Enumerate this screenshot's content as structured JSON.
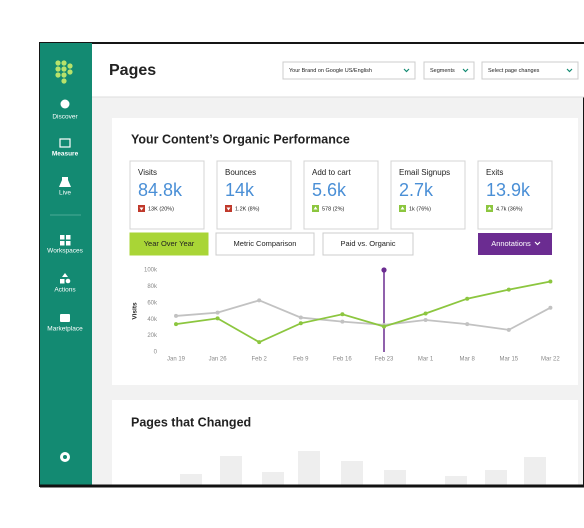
{
  "sidebar": {
    "nav": [
      "Discover",
      "Measure",
      "Live",
      "Workspaces",
      "Actions",
      "Marketplace"
    ]
  },
  "header": {
    "title": "Pages",
    "filters": [
      "Your Brand on Google US/English",
      "Segments",
      "Select page changes"
    ]
  },
  "panel": {
    "title": "Your Content’s Organic Performance",
    "metrics": [
      {
        "label": "Visits",
        "value": "84.8k",
        "change": "13K (20%)",
        "trend": "down"
      },
      {
        "label": "Bounces",
        "value": "14k",
        "change": "1.2K (8%)",
        "trend": "down"
      },
      {
        "label": "Add to cart",
        "value": "5.6k",
        "change": "578 (2%)",
        "trend": "up"
      },
      {
        "label": "Email Signups",
        "value": "2.7k",
        "change": "1k (76%)",
        "trend": "up"
      },
      {
        "label": "Exits",
        "value": "13.9k",
        "change": "4.7k (36%)",
        "trend": "up"
      }
    ],
    "tabs": [
      "Year Over Year",
      "Metric Comparison",
      "Paid vs. Organic"
    ],
    "annotations_button": "Annotations"
  },
  "chart_data": {
    "type": "line",
    "y_label": "Visits",
    "categories": [
      "Jan 19",
      "Jan 26",
      "Feb 2",
      "Feb 9",
      "Feb 16",
      "Feb 23",
      "Mar 1",
      "Mar 8",
      "Mar 15",
      "Mar 22"
    ],
    "series": [
      {
        "color": "#c2c2c2",
        "values": [
          44000,
          48000,
          63000,
          42000,
          37000,
          33000,
          39000,
          34000,
          27000,
          54000
        ]
      },
      {
        "color": "#8cc63f",
        "values": [
          34000,
          41000,
          12000,
          35000,
          46000,
          31000,
          47000,
          65000,
          76000,
          86000
        ]
      }
    ],
    "ylim": [
      0,
      100000
    ],
    "yticks": [
      0,
      {
        "value": 20000,
        "label": "20k"
      },
      {
        "value": 40000,
        "label": "40k"
      },
      {
        "value": 60000,
        "label": "60k"
      },
      {
        "value": 80000,
        "label": "80k"
      },
      {
        "value": 100000,
        "label": "100k"
      }
    ],
    "grid": false,
    "annotations": [
      {
        "category": "Feb 23",
        "color": "#6b2c91"
      }
    ]
  },
  "pages_changed": {
    "title": "Pages that Changed"
  }
}
